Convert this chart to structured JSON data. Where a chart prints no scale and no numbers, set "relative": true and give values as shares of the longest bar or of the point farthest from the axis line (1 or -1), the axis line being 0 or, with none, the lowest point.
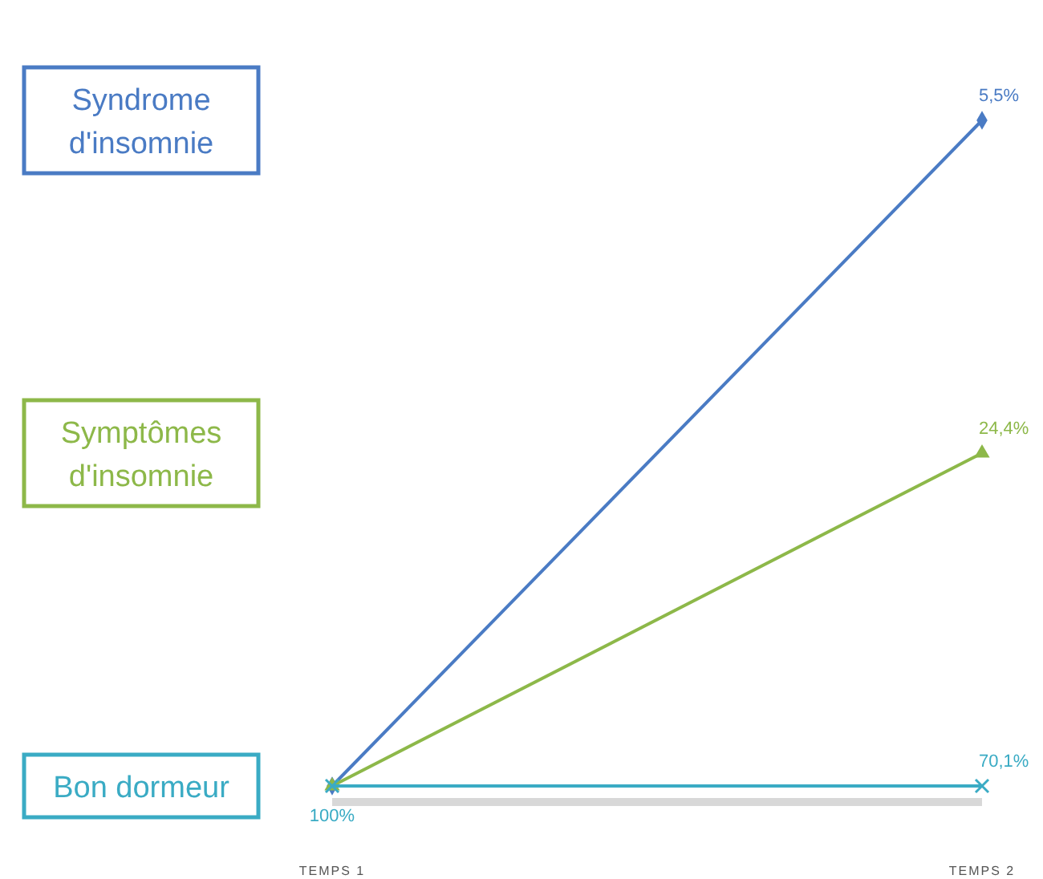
{
  "chart_data": {
    "type": "line",
    "relative": true,
    "categories": [
      "TEMPS 1",
      "TEMPS 2"
    ],
    "series": [
      {
        "name": "Syndrome d'insomnie",
        "color": "#4a7bc4",
        "marker": "diamond",
        "values": [
          0,
          1
        ]
      },
      {
        "name": "Symptômes d'insomnie",
        "color": "#8db849",
        "marker": "triangle",
        "values": [
          0,
          0.5
        ]
      },
      {
        "name": "Bon dormeur",
        "color": "#3aabc4",
        "marker": "cross",
        "values": [
          0,
          0
        ]
      }
    ],
    "annotations": [
      {
        "text": "100%",
        "x": "TEMPS 1",
        "y": 0
      },
      {
        "text": "5,5%",
        "x": "TEMPS 2",
        "y": 1
      },
      {
        "text": "24,4%",
        "x": "TEMPS 2",
        "y": 0.5
      },
      {
        "text": "70,1%",
        "x": "TEMPS 2",
        "y": 0
      }
    ]
  }
}
